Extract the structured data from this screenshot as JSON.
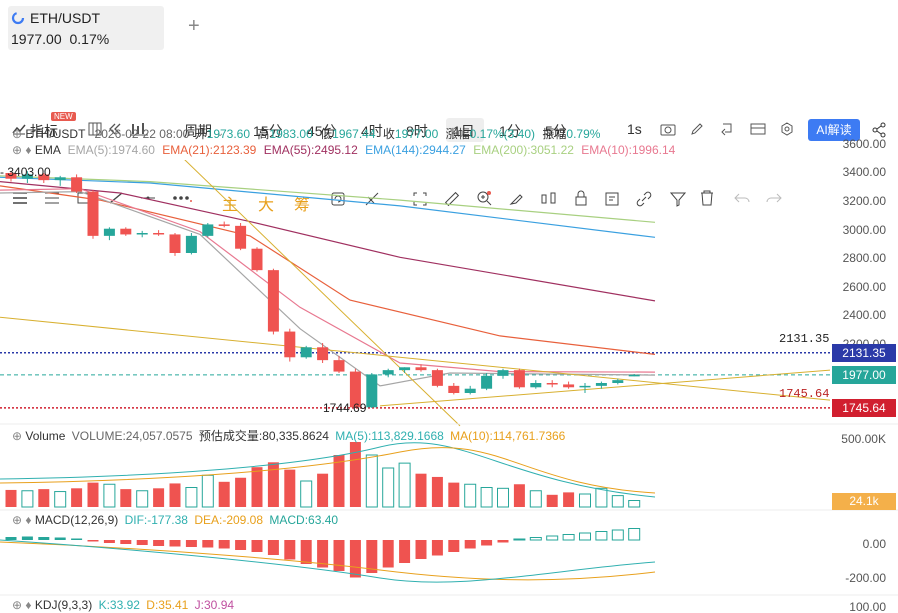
{
  "tab": {
    "title": "ETH/USDT",
    "price": "1977.00",
    "change": "0.17%",
    "plus": "+"
  },
  "toolbar1": {
    "indicators": "指标",
    "new_badge": "NEW",
    "period": "周期",
    "intervals": [
      "15分",
      "45分",
      "4时",
      "8时",
      "1日",
      "1分",
      "5分",
      "1s"
    ],
    "active_interval": "1日",
    "ai": "AI解读"
  },
  "toolbar2": {
    "main": "主",
    "big": "大",
    "chip": "筹"
  },
  "header": {
    "symbol": "ETH/USDT",
    "date": "2026-02-22 08:00",
    "open_label": "开",
    "open": "1973.60",
    "high_label": "高",
    "high": "1983.00",
    "low_label": "低",
    "low": "1967.44",
    "close_label": "收",
    "close": "1977.00",
    "change_label": "涨幅",
    "change": "0.17%(3.40)",
    "amp_label": "振幅",
    "amp": "0.79%"
  },
  "ema": {
    "label": "EMA",
    "e5": "EMA(5):1974.60",
    "e21": "EMA(21):2123.39",
    "e55": "EMA(55):2495.12",
    "e144": "EMA(144):2944.27",
    "e200": "EMA(200):3051.22",
    "e10": "EMA(10):1996.14",
    "colors": {
      "e5": "#a6a6a6",
      "e21": "#e8603c",
      "e55": "#a03060",
      "e144": "#3aa0e0",
      "e200": "#a8d080",
      "e10": "#e87890"
    }
  },
  "price_axis": [
    "3600.00",
    "3400.00",
    "3200.00",
    "3000.00",
    "2800.00",
    "2600.00",
    "2400.00",
    "2200.00"
  ],
  "annotations": {
    "high_mark": "3403.00",
    "low_mark": "1744.69",
    "line1": "2131.35",
    "line2": "1745.64"
  },
  "price_tags": {
    "blue": "2131.35",
    "green": "1977.00",
    "red": "1745.64"
  },
  "volume": {
    "label": "Volume",
    "vol": "VOLUME:24,057.0575",
    "est": "预估成交量:80,335.8624",
    "ma5": "MA(5):113,829.1668",
    "ma10": "MA(10):114,761.7366",
    "axis": "500.00K",
    "tag": "24.1k"
  },
  "macd": {
    "label": "MACD(12,26,9)",
    "dif": "DIF:-177.38",
    "dea": "DEA:-209.08",
    "macd": "MACD:63.40",
    "axis": [
      "0.00",
      "-200.00"
    ]
  },
  "kdj": {
    "label": "KDJ(9,3,3)",
    "k": "K:33.92",
    "d": "D:35.41",
    "j": "J:30.94",
    "axis": "100.00"
  },
  "chart_data": {
    "type": "candlestick",
    "ohlc": [
      [
        3390,
        3400,
        3330,
        3350
      ],
      [
        3350,
        3403,
        3320,
        3380
      ],
      [
        3380,
        3390,
        3320,
        3340
      ],
      [
        3340,
        3370,
        3300,
        3360
      ],
      [
        3360,
        3380,
        3250,
        3260
      ],
      [
        3260,
        3270,
        2930,
        2950
      ],
      [
        2950,
        3010,
        2920,
        3000
      ],
      [
        3000,
        3010,
        2950,
        2960
      ],
      [
        2960,
        2985,
        2940,
        2970
      ],
      [
        2970,
        2990,
        2950,
        2960
      ],
      [
        2960,
        2970,
        2810,
        2830
      ],
      [
        2830,
        2970,
        2820,
        2950
      ],
      [
        2950,
        3040,
        2940,
        3030
      ],
      [
        3030,
        3050,
        3010,
        3020
      ],
      [
        3020,
        3040,
        2850,
        2860
      ],
      [
        2860,
        2870,
        2700,
        2710
      ],
      [
        2710,
        2720,
        2260,
        2280
      ],
      [
        2280,
        2300,
        2070,
        2100
      ],
      [
        2100,
        2180,
        2090,
        2170
      ],
      [
        2170,
        2200,
        2060,
        2080
      ],
      [
        2080,
        2110,
        1990,
        2000
      ],
      [
        2000,
        2020,
        1744.69,
        1750
      ],
      [
        1750,
        1990,
        1745,
        1980
      ],
      [
        1980,
        2020,
        1960,
        2010
      ],
      [
        2010,
        2030,
        1990,
        2030
      ],
      [
        2030,
        2050,
        2000,
        2010
      ],
      [
        2010,
        2020,
        1890,
        1900
      ],
      [
        1900,
        1920,
        1840,
        1850
      ],
      [
        1850,
        1900,
        1840,
        1880
      ],
      [
        1880,
        1990,
        1870,
        1970
      ],
      [
        1970,
        2020,
        1950,
        2010
      ],
      [
        2010,
        2020,
        1880,
        1890
      ],
      [
        1890,
        1940,
        1880,
        1920
      ],
      [
        1920,
        1940,
        1890,
        1910
      ],
      [
        1910,
        1930,
        1880,
        1890
      ],
      [
        1890,
        1920,
        1850,
        1900
      ],
      [
        1900,
        1930,
        1880,
        1920
      ],
      [
        1920,
        1950,
        1910,
        1940
      ],
      [
        1973.6,
        1983,
        1967.44,
        1977
      ]
    ],
    "volume": [
      42,
      40,
      44,
      38,
      46,
      60,
      56,
      44,
      40,
      46,
      58,
      48,
      78,
      62,
      72,
      98,
      110,
      92,
      64,
      82,
      128,
      160,
      128,
      96,
      108,
      82,
      74,
      60,
      56,
      48,
      46,
      56,
      40,
      30,
      36,
      32,
      46,
      28,
      16
    ],
    "macd_hist": [
      12,
      14,
      12,
      10,
      6,
      -6,
      -12,
      -16,
      -20,
      -24,
      -26,
      -28,
      -30,
      -34,
      -40,
      -48,
      -60,
      -78,
      -96,
      -110,
      -124,
      -150,
      -132,
      -110,
      -92,
      -76,
      -62,
      -48,
      -34,
      -22,
      -10,
      4,
      10,
      16,
      22,
      28,
      34,
      40,
      46
    ],
    "ylim": [
      1700,
      3650
    ]
  }
}
